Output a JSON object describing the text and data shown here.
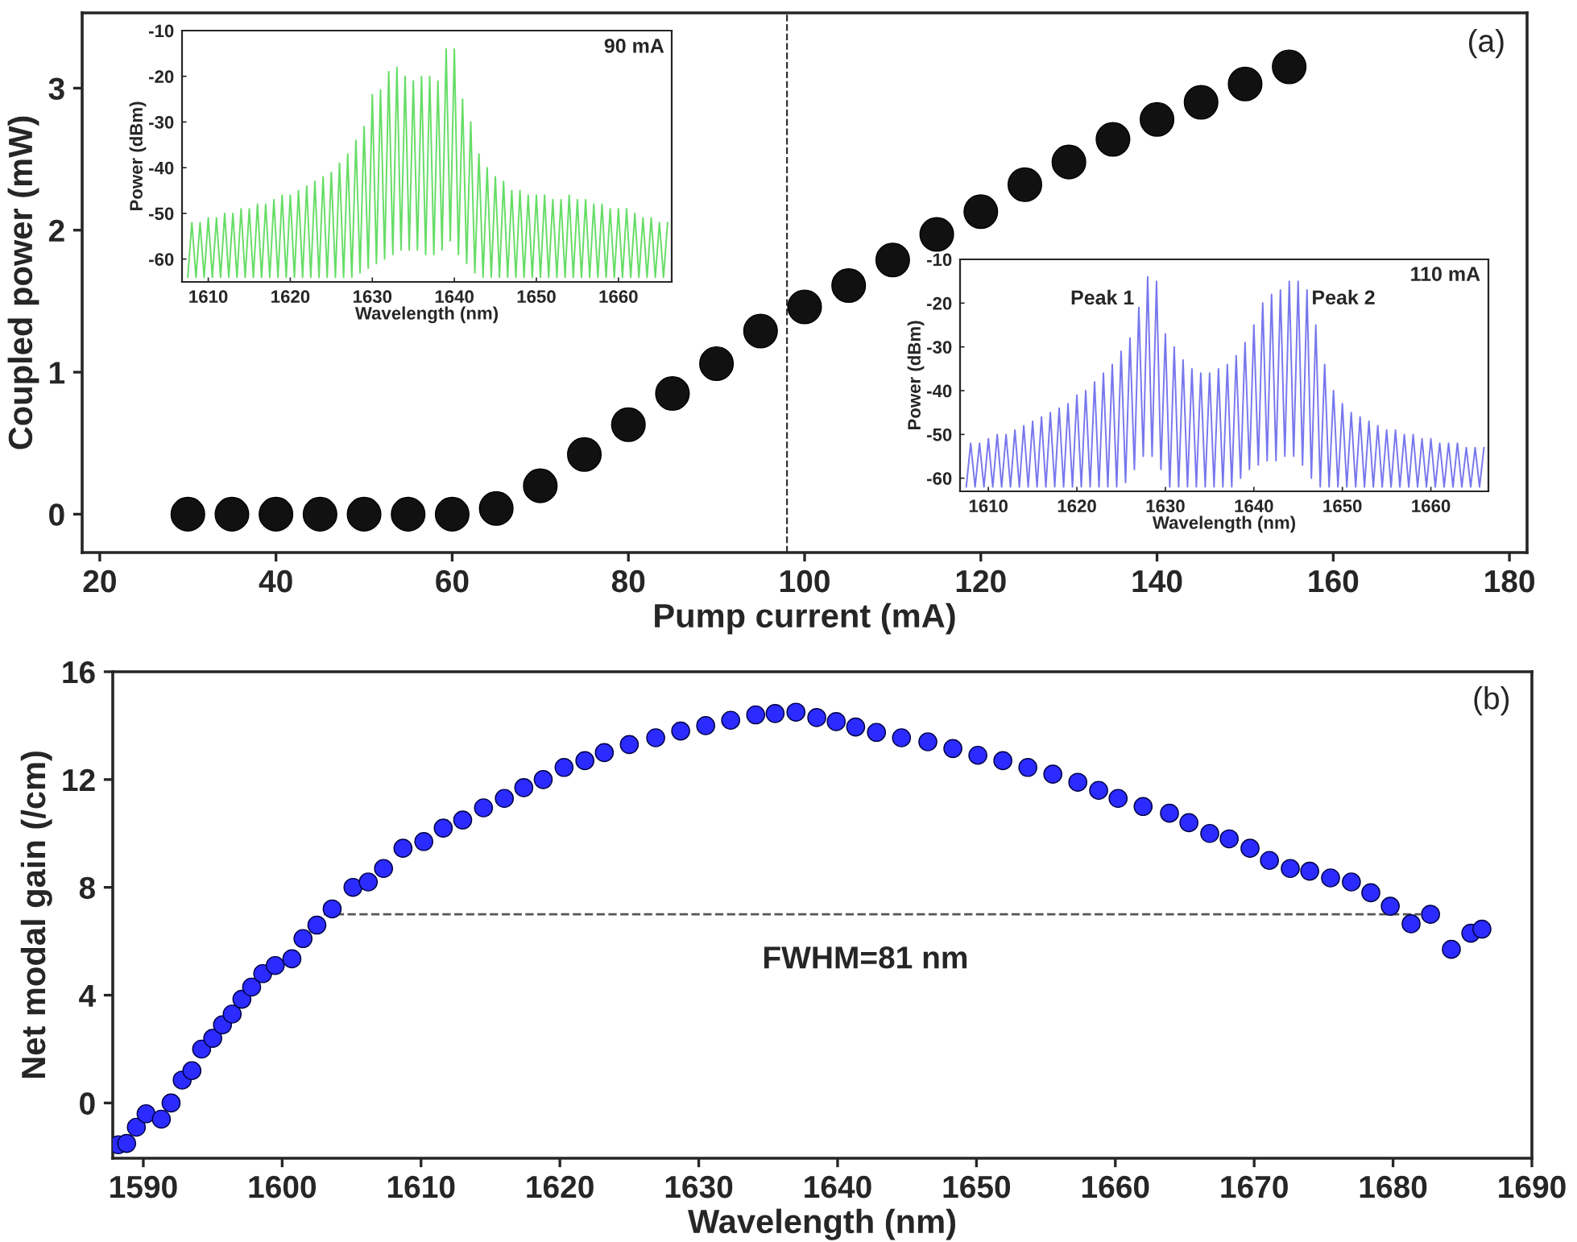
{
  "chart_data": [
    {
      "type": "scatter",
      "xlabel": "Pump current (mA)",
      "ylabel": "Coupled power (mW)",
      "xlim": [
        18,
        182
      ],
      "ylim": [
        -0.27,
        3.53
      ],
      "xticks": [
        20,
        40,
        60,
        80,
        100,
        120,
        140,
        160,
        180
      ],
      "yticks": [
        0,
        1,
        2,
        3
      ],
      "marker": "circle",
      "annotations": [
        "(a)"
      ],
      "ref_lines": [
        {
          "axis": "x",
          "value": 98,
          "color": "#333333",
          "line_style": "dashed"
        }
      ],
      "x": [
        30,
        35,
        40,
        45,
        50,
        55,
        60,
        65,
        70,
        75,
        80,
        85,
        90,
        95,
        100,
        105,
        110,
        115,
        120,
        125,
        130,
        135,
        140,
        145,
        150,
        155
      ],
      "series": [
        {
          "color": "#111111",
          "values": [
            0,
            0,
            0,
            0,
            0,
            0,
            0,
            0.04,
            0.2,
            0.42,
            0.63,
            0.85,
            1.06,
            1.29,
            1.46,
            1.61,
            1.79,
            1.97,
            2.13,
            2.32,
            2.48,
            2.64,
            2.78,
            2.9,
            3.03,
            3.15
          ]
        }
      ]
    },
    {
      "type": "line",
      "xlabel": "Wavelength (nm)",
      "ylabel": "Power (dBm)",
      "xlim": [
        1606.8,
        1666.5
      ],
      "ylim": [
        -65,
        -10
      ],
      "xticks": [
        1610,
        1620,
        1630,
        1640,
        1650,
        1660
      ],
      "yticks": [
        -60,
        -50,
        -40,
        -30,
        -20,
        -10
      ],
      "marker": "none",
      "line_style": "solid",
      "annotations": [
        "90 mA"
      ],
      "x": [
        1607.5,
        1608,
        1608.5,
        1609,
        1609.5,
        1610,
        1610.5,
        1611,
        1611.5,
        1612,
        1612.5,
        1613,
        1613.5,
        1614,
        1614.5,
        1615,
        1615.5,
        1616,
        1616.5,
        1617,
        1617.5,
        1618,
        1618.5,
        1619,
        1619.5,
        1620,
        1620.5,
        1621,
        1621.5,
        1622,
        1622.5,
        1623,
        1623.5,
        1624,
        1624.5,
        1625,
        1625.5,
        1626,
        1626.5,
        1627,
        1627.5,
        1628,
        1628.5,
        1629,
        1629.5,
        1630,
        1630.5,
        1631,
        1631.5,
        1632,
        1632.5,
        1633,
        1633.5,
        1634,
        1634.5,
        1635,
        1635.5,
        1636,
        1636.5,
        1637,
        1637.5,
        1638,
        1638.5,
        1639,
        1639.5,
        1640,
        1640.5,
        1641,
        1641.5,
        1642,
        1642.5,
        1643,
        1643.5,
        1644,
        1644.5,
        1645,
        1645.5,
        1646,
        1646.5,
        1647,
        1647.5,
        1648,
        1648.5,
        1649,
        1649.5,
        1650,
        1650.5,
        1651,
        1651.5,
        1652,
        1652.5,
        1653,
        1653.5,
        1654,
        1654.5,
        1655,
        1655.5,
        1656,
        1656.5,
        1657,
        1657.5,
        1658,
        1658.5,
        1659,
        1659.5,
        1660,
        1660.5,
        1661,
        1661.5,
        1662,
        1662.5,
        1663,
        1663.5,
        1664,
        1664.5,
        1665,
        1665.5,
        1666
      ],
      "series": [
        {
          "color": "#66dd66",
          "values": [
            -64,
            -52,
            -64,
            -52,
            -64,
            -51,
            -64,
            -51,
            -64,
            -50,
            -64,
            -50,
            -64,
            -49,
            -64,
            -49,
            -64,
            -48,
            -64,
            -48,
            -64,
            -47,
            -64,
            -46,
            -64,
            -46,
            -64,
            -45,
            -64,
            -44,
            -64,
            -43,
            -64,
            -42,
            -64,
            -41,
            -64,
            -39,
            -64,
            -37,
            -64,
            -34,
            -63,
            -31,
            -62,
            -24,
            -61,
            -23,
            -60,
            -19,
            -59,
            -18,
            -58,
            -20,
            -58,
            -21,
            -58,
            -20,
            -59,
            -20,
            -59,
            -21,
            -58,
            -14,
            -56,
            -14,
            -59,
            -25,
            -61,
            -30,
            -63,
            -37,
            -64,
            -40,
            -64,
            -42,
            -64,
            -43,
            -64,
            -45,
            -64,
            -45,
            -64,
            -46,
            -64,
            -46,
            -64,
            -46,
            -64,
            -47,
            -64,
            -47,
            -64,
            -46,
            -64,
            -47,
            -64,
            -47,
            -64,
            -48,
            -64,
            -48,
            -64,
            -49,
            -64,
            -49,
            -64,
            -49,
            -64,
            -50,
            -64,
            -51,
            -64,
            -51,
            -64,
            -52,
            -64,
            -52
          ]
        }
      ]
    },
    {
      "type": "line",
      "xlabel": "Wavelength (nm)",
      "ylabel": "Power (dBm)",
      "xlim": [
        1606.8,
        1666.5
      ],
      "ylim": [
        -63,
        -10
      ],
      "xticks": [
        1610,
        1620,
        1630,
        1640,
        1650,
        1660
      ],
      "yticks": [
        -60,
        -50,
        -40,
        -30,
        -20,
        -10
      ],
      "marker": "none",
      "line_style": "solid",
      "annotations": [
        "110 mA",
        {
          "text": "Peak 1",
          "x": 1628,
          "y": -14
        },
        {
          "text": "Peak 2",
          "x": 1645,
          "y": -15
        }
      ],
      "x": [
        1607.5,
        1608,
        1608.5,
        1609,
        1609.5,
        1610,
        1610.5,
        1611,
        1611.5,
        1612,
        1612.5,
        1613,
        1613.5,
        1614,
        1614.5,
        1615,
        1615.5,
        1616,
        1616.5,
        1617,
        1617.5,
        1618,
        1618.5,
        1619,
        1619.5,
        1620,
        1620.5,
        1621,
        1621.5,
        1622,
        1622.5,
        1623,
        1623.5,
        1624,
        1624.5,
        1625,
        1625.5,
        1626,
        1626.5,
        1627,
        1627.5,
        1628,
        1628.5,
        1629,
        1629.5,
        1630,
        1630.5,
        1631,
        1631.5,
        1632,
        1632.5,
        1633,
        1633.5,
        1634,
        1634.5,
        1635,
        1635.5,
        1636,
        1636.5,
        1637,
        1637.5,
        1638,
        1638.5,
        1639,
        1639.5,
        1640,
        1640.5,
        1641,
        1641.5,
        1642,
        1642.5,
        1643,
        1643.5,
        1644,
        1644.5,
        1645,
        1645.5,
        1646,
        1646.5,
        1647,
        1647.5,
        1648,
        1648.5,
        1649,
        1649.5,
        1650,
        1650.5,
        1651,
        1651.5,
        1652,
        1652.5,
        1653,
        1653.5,
        1654,
        1654.5,
        1655,
        1655.5,
        1656,
        1656.5,
        1657,
        1657.5,
        1658,
        1658.5,
        1659,
        1659.5,
        1660,
        1660.5,
        1661,
        1661.5,
        1662,
        1662.5,
        1663,
        1663.5,
        1664,
        1664.5,
        1665,
        1665.5,
        1666
      ],
      "series": [
        {
          "color": "#7777ee",
          "values": [
            -62,
            -52,
            -62,
            -52,
            -62,
            -51,
            -62,
            -50,
            -62,
            -50,
            -62,
            -49,
            -62,
            -48,
            -62,
            -47,
            -62,
            -46,
            -62,
            -45,
            -62,
            -44,
            -62,
            -43,
            -62,
            -41,
            -62,
            -40,
            -62,
            -38,
            -62,
            -36,
            -62,
            -34,
            -62,
            -31,
            -61,
            -28,
            -58,
            -21,
            -55,
            -14,
            -55,
            -15,
            -58,
            -27,
            -62,
            -30,
            -62,
            -33,
            -62,
            -35,
            -62,
            -36,
            -62,
            -36,
            -62,
            -35,
            -62,
            -34,
            -62,
            -32,
            -60,
            -29,
            -58,
            -25,
            -57,
            -20,
            -56,
            -18,
            -56,
            -17,
            -55,
            -15,
            -55,
            -15,
            -57,
            -17,
            -60,
            -25,
            -62,
            -34,
            -62,
            -40,
            -62,
            -43,
            -62,
            -45,
            -62,
            -46,
            -62,
            -47,
            -62,
            -48,
            -62,
            -49,
            -62,
            -49,
            -62,
            -50,
            -62,
            -50,
            -62,
            -51,
            -62,
            -51,
            -62,
            -52,
            -62,
            -52,
            -62,
            -52,
            -62,
            -53,
            -62,
            -53,
            -62,
            -53
          ]
        }
      ]
    },
    {
      "type": "scatter",
      "xlabel": "Wavelength (nm)",
      "ylabel": "Net modal gain (/cm)",
      "xlim": [
        1587.8,
        1690
      ],
      "ylim": [
        -2.05,
        16
      ],
      "xticks": [
        1590,
        1600,
        1610,
        1620,
        1630,
        1640,
        1650,
        1660,
        1670,
        1680,
        1690
      ],
      "yticks": [
        0,
        4,
        8,
        12,
        16
      ],
      "marker": "circle",
      "annotations": [
        "(b)",
        {
          "text": "FWHM=81 nm",
          "x": 1642,
          "y": 7
        }
      ],
      "series": [
        {
          "color": "#2b2bff",
          "x": [
            1588.2,
            1588.8,
            1589.5,
            1590.2,
            1591.3,
            1592,
            1592.8,
            1593.5,
            1594.2,
            1595,
            1595.7,
            1596.4,
            1597.1,
            1597.8,
            1598.6,
            1599.5,
            1600.7,
            1601.5,
            1602.5,
            1603.6,
            1605.1,
            1606.2,
            1607.3,
            1608.7,
            1610.2,
            1611.6,
            1613,
            1614.5,
            1616,
            1617.4,
            1618.8,
            1620.3,
            1621.8,
            1623.2,
            1625,
            1626.9,
            1628.7,
            1630.5,
            1632.3,
            1634.1,
            1635.5,
            1637,
            1638.5,
            1639.9,
            1641.3,
            1642.8,
            1644.6,
            1646.5,
            1648.3,
            1650.1,
            1651.9,
            1653.7,
            1655.5,
            1657.3,
            1658.8,
            1660.2,
            1662,
            1663.9,
            1665.3,
            1666.8,
            1668.2,
            1669.7,
            1671.1,
            1672.6,
            1674,
            1675.5,
            1677,
            1678.4,
            1679.8,
            1681.3,
            1682.7,
            1684.2,
            1685.6,
            1686.4
          ],
          "values": [
            -1.55,
            -1.5,
            -0.9,
            -0.4,
            -0.6,
            0,
            0.85,
            1.2,
            2.0,
            2.4,
            2.9,
            3.3,
            3.85,
            4.3,
            4.8,
            5.1,
            5.35,
            6.1,
            6.6,
            7.2,
            8.0,
            8.2,
            8.7,
            9.45,
            9.7,
            10.2,
            10.5,
            10.95,
            11.3,
            11.7,
            12.0,
            12.45,
            12.7,
            13.0,
            13.3,
            13.55,
            13.8,
            14.0,
            14.2,
            14.4,
            14.45,
            14.5,
            14.3,
            14.15,
            13.95,
            13.75,
            13.55,
            13.4,
            13.15,
            12.9,
            12.7,
            12.45,
            12.2,
            11.9,
            11.6,
            11.3,
            11.0,
            10.75,
            10.4,
            10.0,
            9.8,
            9.45,
            9.0,
            8.7,
            8.6,
            8.35,
            8.2,
            7.8,
            7.3,
            6.65,
            7.0,
            5.7,
            6.3,
            6.45
          ]
        },
        {
          "type": "line",
          "color": "#555555",
          "line_style": "dashed",
          "marker": "none",
          "x": [
            1603,
            1682
          ],
          "values": [
            7,
            7
          ]
        }
      ]
    }
  ]
}
